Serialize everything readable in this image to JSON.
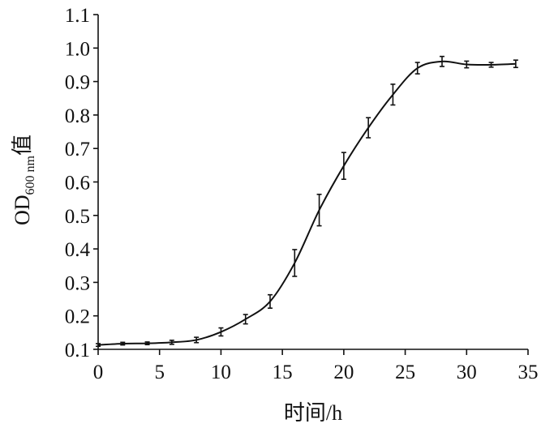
{
  "chart_data": {
    "type": "line",
    "xlabel": "时间/h",
    "ylabel": {
      "prefix": "OD",
      "subscript": "600 nm",
      "suffix": "值"
    },
    "xlim": [
      0,
      35
    ],
    "ylim": [
      0.1,
      1.1
    ],
    "xticks": [
      "0",
      "5",
      "10",
      "15",
      "20",
      "25",
      "30",
      "35"
    ],
    "yticks": [
      "0.1",
      "0.2",
      "0.3",
      "0.4",
      "0.5",
      "0.6",
      "0.7",
      "0.8",
      "0.9",
      "1.0",
      "1.1"
    ],
    "grid": false,
    "legend": "none",
    "series": [
      {
        "x": [
          0,
          2,
          4,
          6,
          8,
          10,
          12,
          14,
          16,
          18,
          20,
          22,
          24,
          26,
          28,
          30,
          32,
          34
        ],
        "y": [
          0.113,
          0.117,
          0.118,
          0.121,
          0.128,
          0.152,
          0.19,
          0.243,
          0.358,
          0.516,
          0.648,
          0.762,
          0.861,
          0.94,
          0.96,
          0.951,
          0.95,
          0.953
        ],
        "err": [
          0.004,
          0.004,
          0.004,
          0.006,
          0.008,
          0.012,
          0.014,
          0.02,
          0.04,
          0.047,
          0.04,
          0.03,
          0.031,
          0.017,
          0.015,
          0.01,
          0.007,
          0.011
        ]
      }
    ]
  }
}
